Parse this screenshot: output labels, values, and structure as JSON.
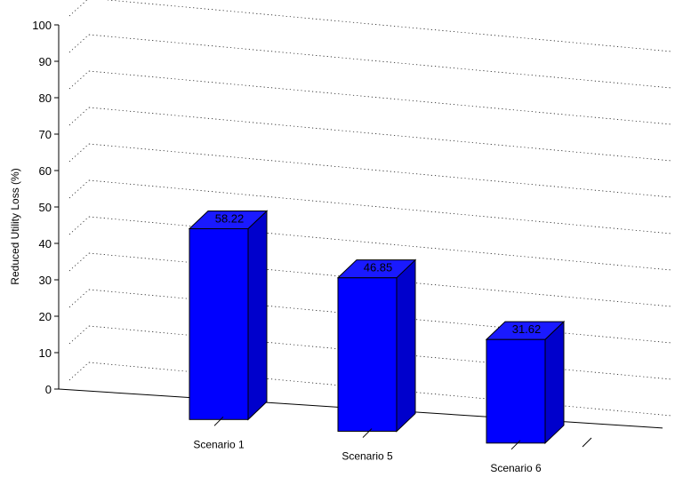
{
  "chart_data": {
    "type": "bar",
    "title": "",
    "xlabel": "",
    "ylabel": "Reduced Utility Loss (%)",
    "categories": [
      "Scenario 1",
      "Scenario 5",
      "Scenario 6"
    ],
    "values": [
      58.22,
      46.85,
      31.62
    ],
    "value_labels": [
      "58.22",
      "46.85",
      "31.62"
    ],
    "ylim": [
      0,
      100
    ],
    "yticks": [
      0,
      10,
      20,
      30,
      40,
      50,
      60,
      70,
      80,
      90,
      100
    ],
    "grid": true,
    "legend": "none",
    "style": "3d",
    "colors": {
      "bar_front": "#0000FF",
      "bar_side": "#0000CC",
      "bar_top": "#1A1AFF",
      "edge": "#000000",
      "grid": "#000000"
    }
  }
}
